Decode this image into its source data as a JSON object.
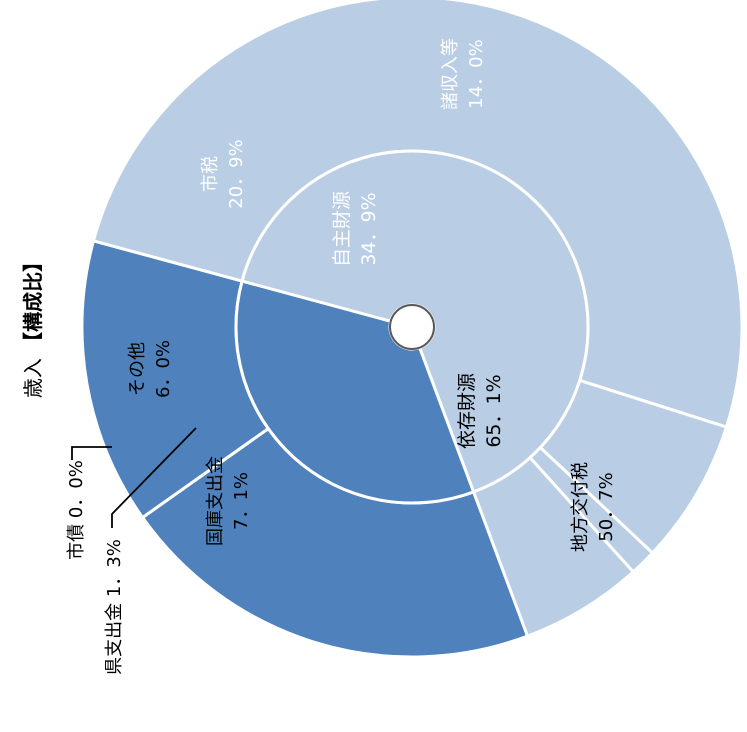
{
  "chart_data": {
    "type": "pie",
    "variant": "sunburst",
    "title": "歳入【構成比】",
    "title_parts": {
      "main": "歳入",
      "bracket": "【構成比】"
    },
    "orientation": "rotated 90° counter-clockwise (text reads bottom-to-top)",
    "inner_ring": [
      {
        "name": "自主財源",
        "value_label": "34．9%",
        "value": 34.9,
        "color": "#4f81bd",
        "text_color": "#ffffff"
      },
      {
        "name": "依存財源",
        "value_label": "65．1%",
        "value": 65.1,
        "color": "#b9cde5",
        "text_color": "#000000"
      }
    ],
    "outer_ring": [
      {
        "name": "市税",
        "value_label": "20．9%",
        "value": 20.9,
        "parent": "自主財源",
        "color": "#4f81bd",
        "text_color": "#ffffff"
      },
      {
        "name": "諸収入等",
        "value_label": "14．0%",
        "value": 14.0,
        "parent": "自主財源",
        "color": "#4f81bd",
        "text_color": "#ffffff"
      },
      {
        "name": "地方交付税",
        "value_label": "50．7%",
        "value": 50.7,
        "parent": "依存財源",
        "color": "#b9cde5",
        "text_color": "#000000"
      },
      {
        "name": "国庫支出金",
        "value_label": "7．1%",
        "value": 7.1,
        "parent": "依存財源",
        "color": "#b9cde5",
        "text_color": "#000000"
      },
      {
        "name": "県支出金",
        "value_label": "1．3%",
        "value": 1.3,
        "parent": "依存財源",
        "color": "#b9cde5",
        "text_color": "#000000"
      },
      {
        "name": "市債",
        "value_label": "0．0%",
        "value": 0.0,
        "parent": "依存財源",
        "color": "#b9cde5",
        "text_color": "#000000"
      },
      {
        "name": "その他",
        "value_label": "6．0%",
        "value": 6.0,
        "parent": "依存財源",
        "color": "#b9cde5",
        "text_color": "#000000"
      }
    ],
    "callout_labels": [
      {
        "text": "市債 0．0%",
        "target": "市債"
      },
      {
        "text": "県支出金 1．3%",
        "target": "県支出金"
      }
    ],
    "legend": "none"
  }
}
